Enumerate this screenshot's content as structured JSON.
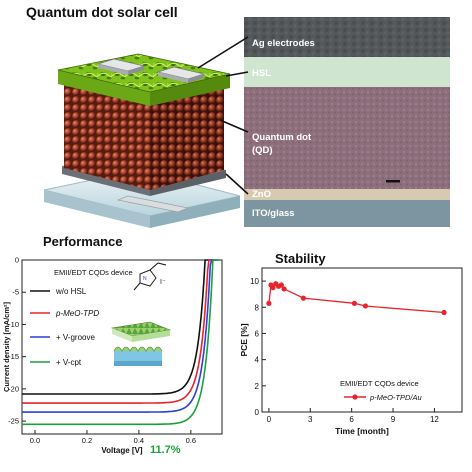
{
  "top": {
    "title": "Quantum dot solar cell",
    "layers": [
      "Ag electrodes",
      "HSL",
      "Quantum dot",
      "(QD)",
      "ZnO",
      "ITO/glass"
    ]
  },
  "performance": {
    "title": "Performance",
    "legend_title": "EMII/EDT CQDs device",
    "legend_items": [
      {
        "name": "w/o HSL",
        "color": "#111111"
      },
      {
        "name": "p-MeO-TPD",
        "color": "#e8232b"
      },
      {
        "name": "+ V-groove",
        "color": "#2b3fdd"
      },
      {
        "name": "+ V-cpt",
        "color": "#19a23a"
      }
    ],
    "annotation": "11.7%",
    "molecule_label": "I⁻"
  },
  "stability": {
    "title": "Stability",
    "legend_title": "EMII/EDT CQDs device",
    "legend_series": "p-MeO-TPD/Au"
  },
  "chart_data": [
    {
      "type": "line",
      "xlabel": "Voltage [V]",
      "ylabel": "Current density [mA/cm²]",
      "xlim": [
        -0.05,
        0.72
      ],
      "ylim": [
        -27,
        0
      ],
      "x_ticks": [
        "0.0",
        "0.2",
        "0.4",
        "0.6"
      ],
      "y_ticks": [
        "0",
        "-5",
        "-10",
        "-15",
        "-20",
        "-25"
      ],
      "series": [
        {
          "name": "w/o HSL",
          "color": "#111111",
          "jsc": -20.8,
          "voc": 0.655,
          "knee": 0.52
        },
        {
          "name": "p-MeO-TPD",
          "color": "#e8232b",
          "jsc": -22.2,
          "voc": 0.667,
          "knee": 0.53
        },
        {
          "name": "+ V-groove",
          "color": "#2b3fdd",
          "jsc": -23.6,
          "voc": 0.676,
          "knee": 0.54
        },
        {
          "name": "+ V-cpt",
          "color": "#19a23a",
          "jsc": -25.5,
          "voc": 0.685,
          "knee": 0.55
        }
      ]
    },
    {
      "type": "line",
      "xlabel": "Time [month]",
      "ylabel": "PCE [%]",
      "xlim": [
        -0.5,
        14
      ],
      "ylim": [
        0,
        11
      ],
      "x_ticks": [
        "0",
        "3",
        "6",
        "9",
        "12"
      ],
      "y_ticks": [
        "0",
        "2",
        "4",
        "6",
        "8",
        "10"
      ],
      "series": [
        {
          "name": "p-MeO-TPD/Au",
          "color": "#e8232b",
          "x": [
            0,
            0.15,
            0.3,
            0.5,
            0.7,
            0.9,
            1.1,
            2.5,
            6.2,
            7.0,
            12.7
          ],
          "y": [
            8.3,
            9.7,
            9.5,
            9.8,
            9.6,
            9.7,
            9.4,
            8.7,
            8.3,
            8.1,
            7.6
          ]
        }
      ]
    }
  ]
}
